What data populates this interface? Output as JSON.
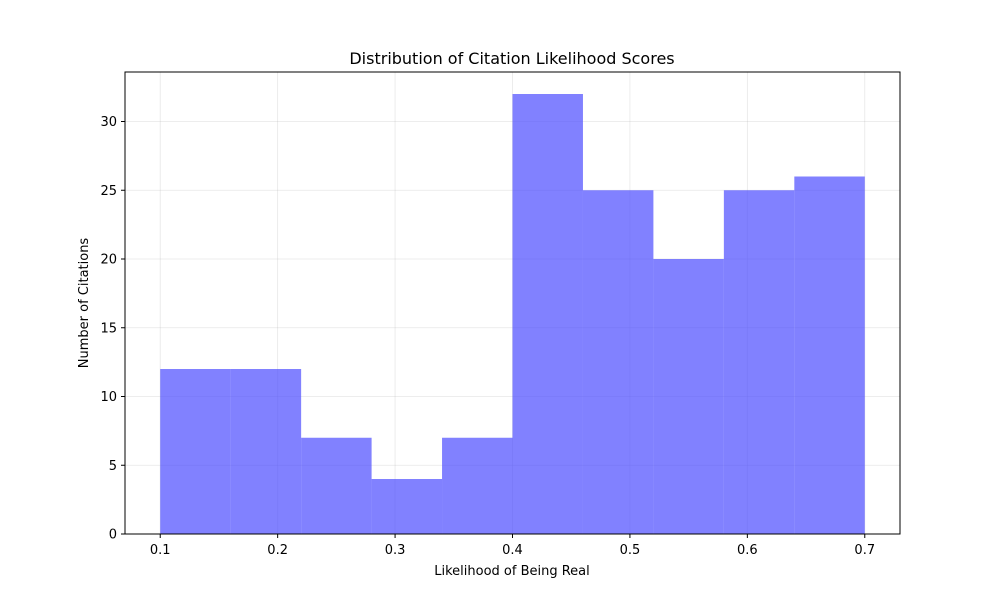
{
  "chart_data": {
    "type": "bar",
    "title": "Distribution of Citation Likelihood Scores",
    "xlabel": "Likelihood of Being Real",
    "ylabel": "Number of Citations",
    "bins": [
      {
        "start": 0.1,
        "end": 0.16,
        "count": 12
      },
      {
        "start": 0.16,
        "end": 0.22,
        "count": 12
      },
      {
        "start": 0.22,
        "end": 0.28,
        "count": 7
      },
      {
        "start": 0.28,
        "end": 0.34,
        "count": 4
      },
      {
        "start": 0.34,
        "end": 0.4,
        "count": 7
      },
      {
        "start": 0.4,
        "end": 0.46,
        "count": 32
      },
      {
        "start": 0.46,
        "end": 0.52,
        "count": 25
      },
      {
        "start": 0.52,
        "end": 0.58,
        "count": 20
      },
      {
        "start": 0.58,
        "end": 0.64,
        "count": 25
      },
      {
        "start": 0.64,
        "end": 0.7,
        "count": 26
      }
    ],
    "xlim": [
      0.07,
      0.73
    ],
    "ylim": [
      0,
      33.6
    ],
    "xticks": [
      0.1,
      0.2,
      0.3,
      0.4,
      0.5,
      0.6,
      0.7
    ],
    "xtick_labels": [
      "0.1",
      "0.2",
      "0.3",
      "0.4",
      "0.5",
      "0.6",
      "0.7"
    ],
    "yticks": [
      0,
      5,
      10,
      15,
      20,
      25,
      30
    ],
    "ytick_labels": [
      "0",
      "5",
      "10",
      "15",
      "20",
      "25",
      "30"
    ],
    "grid": true,
    "bar_color": "#4b4bff",
    "bar_opacity": 0.7
  }
}
